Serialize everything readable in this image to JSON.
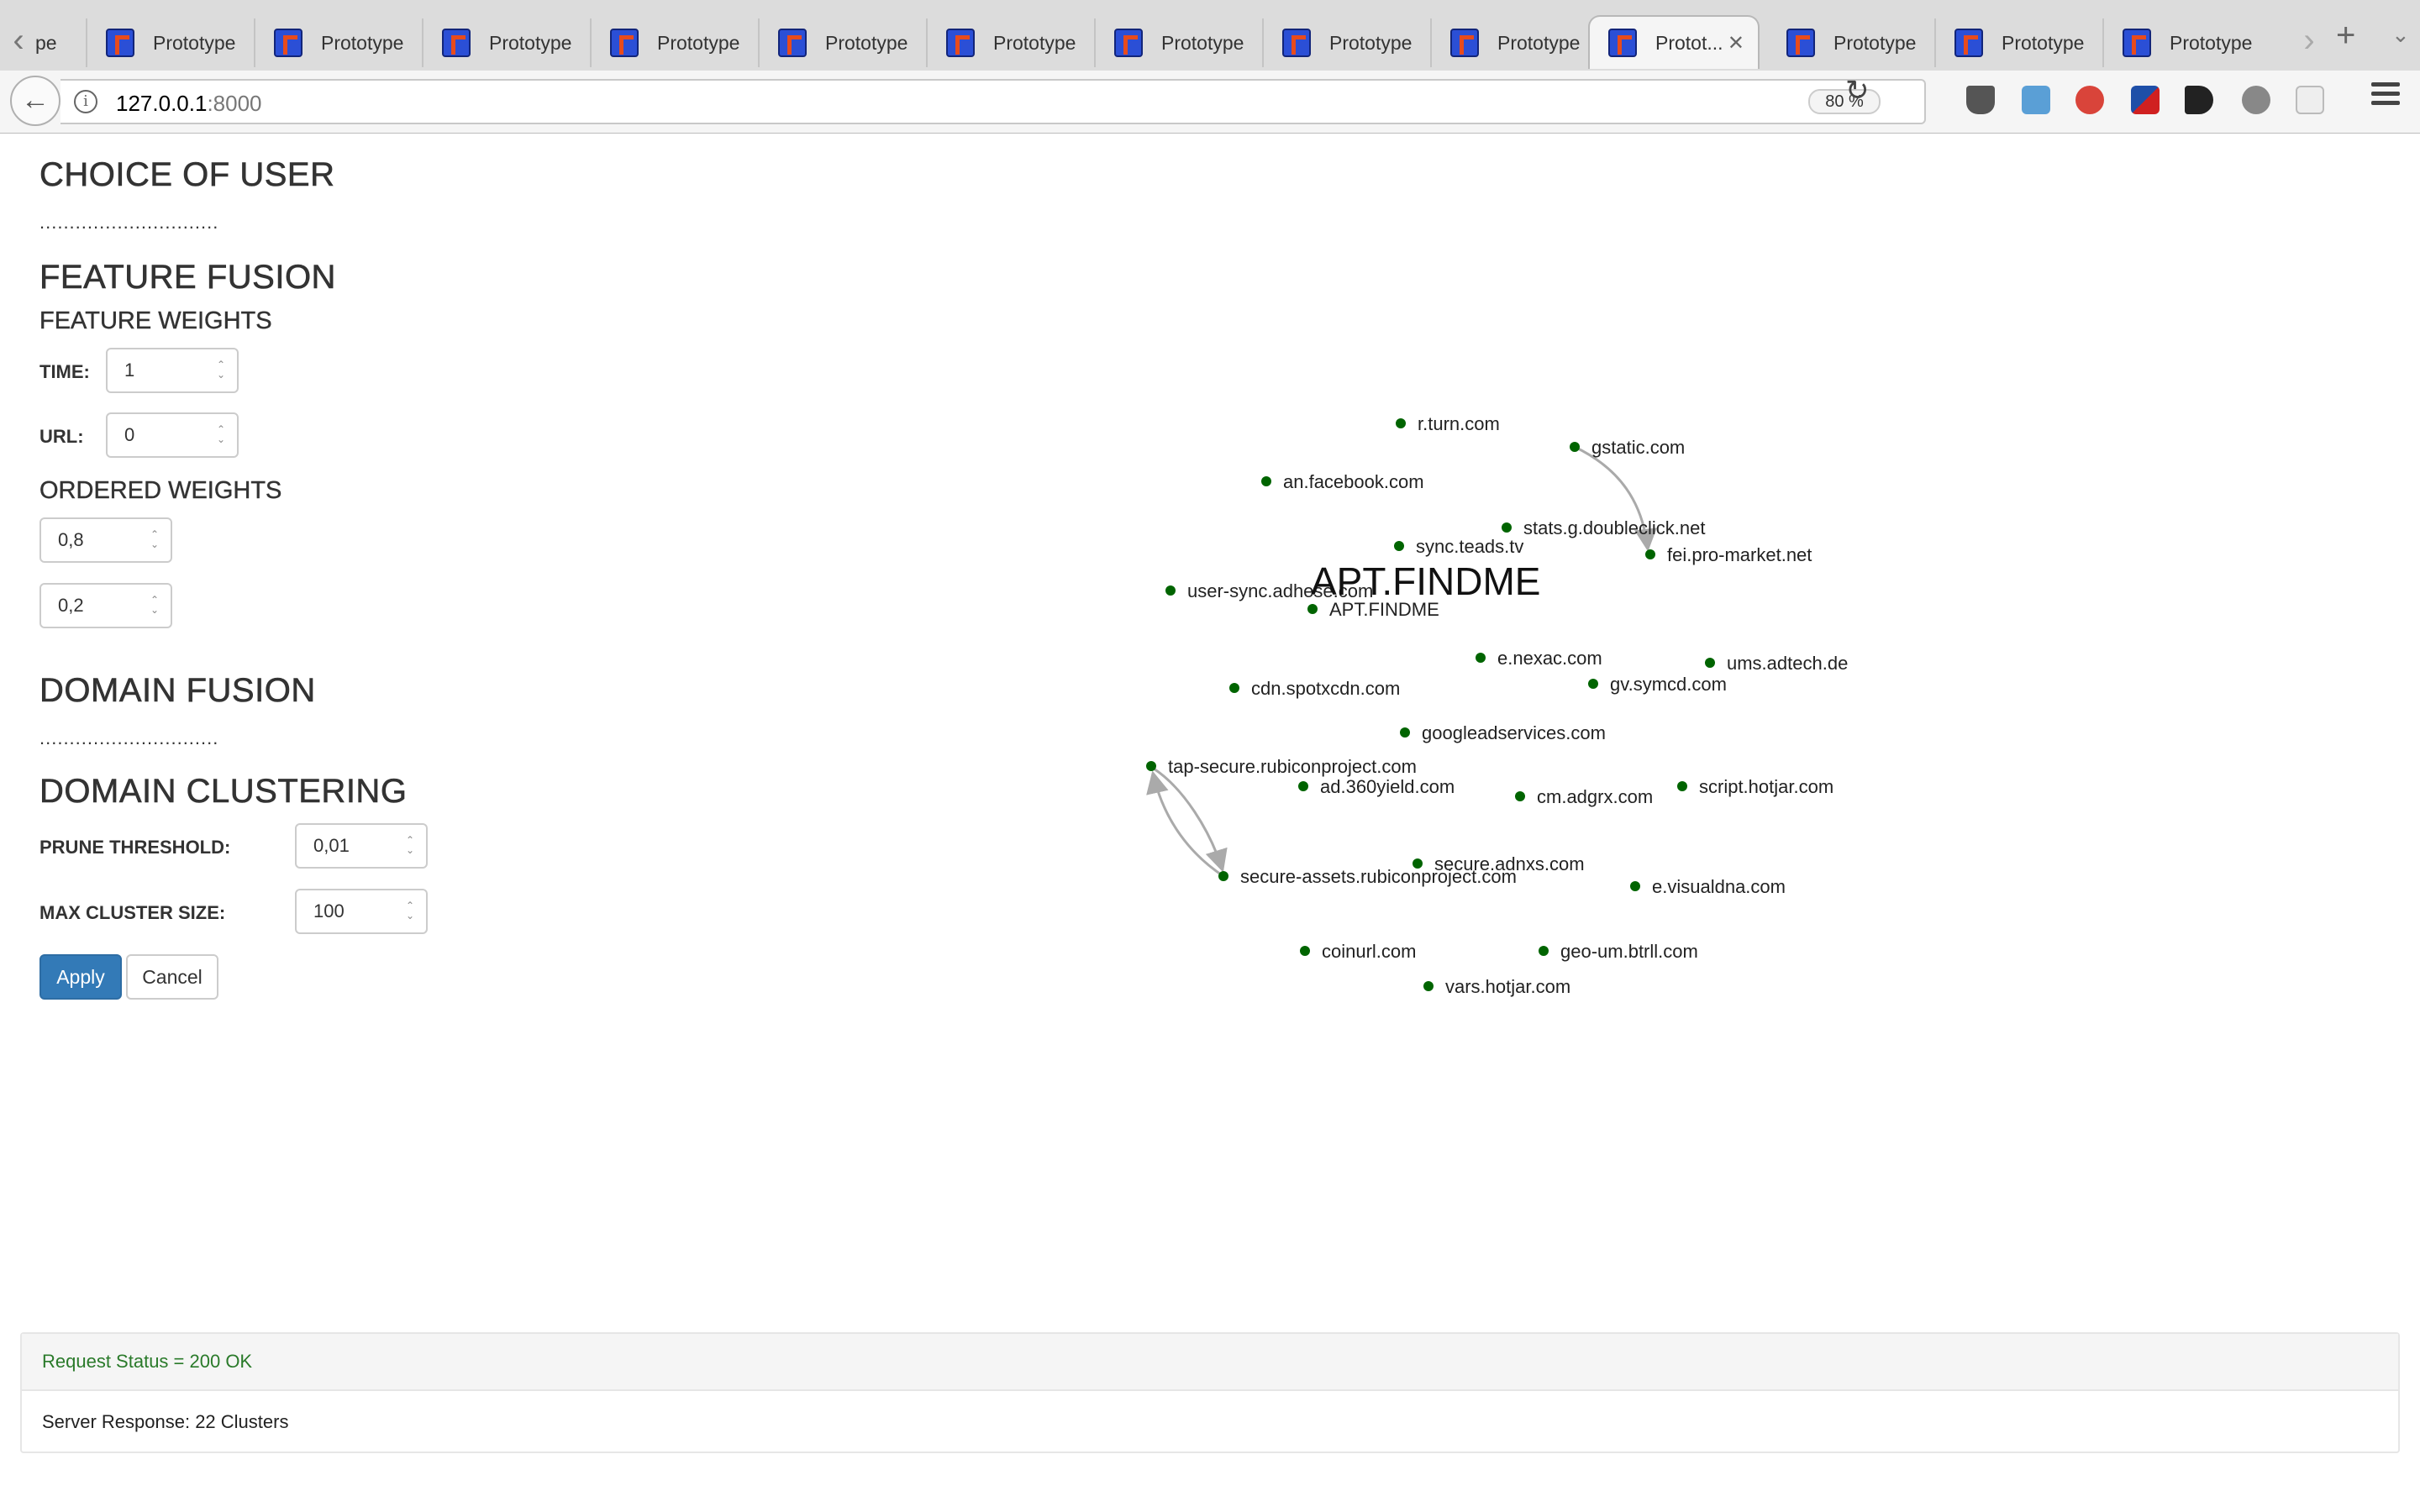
{
  "browser": {
    "tabs": [
      {
        "label": "Prototype",
        "active": false
      },
      {
        "label": "Prototype",
        "active": false
      },
      {
        "label": "Prototype",
        "active": false
      },
      {
        "label": "Prototype",
        "active": false
      },
      {
        "label": "Prototype",
        "active": false
      },
      {
        "label": "Prototype",
        "active": false
      },
      {
        "label": "Prototype",
        "active": false
      },
      {
        "label": "Prototype",
        "active": false
      },
      {
        "label": "Prototype",
        "active": false
      },
      {
        "label": "Protot...",
        "active": true
      },
      {
        "label": "Prototype",
        "active": false
      },
      {
        "label": "Prototype",
        "active": false
      },
      {
        "label": "Prototype",
        "active": false
      }
    ],
    "first_tab_fragment": "pe",
    "url_host": "127.0.0.1",
    "url_port": ":8000",
    "zoom": "80 %",
    "icons": {
      "favicon": "prototype-favicon",
      "close": "close-icon",
      "back": "back-arrow-icon",
      "reload": "reload-icon",
      "menu": "hamburger-menu-icon"
    }
  },
  "sidebar": {
    "choice_of_user": "CHOICE OF USER",
    "choice_dots": "..............................",
    "feature_fusion": "FEATURE FUSION",
    "feature_weights": "FEATURE WEIGHTS",
    "time_label": "TIME:",
    "time_value": "1",
    "url_label": "URL:",
    "url_value": "0",
    "ordered_weights": "ORDERED WEIGHTS",
    "ordered_weight_1": "0,8",
    "ordered_weight_2": "0,2",
    "domain_fusion": "DOMAIN FUSION",
    "domain_dots": "..............................",
    "domain_clustering": "DOMAIN CLUSTERING",
    "prune_label": "PRUNE THRESHOLD:",
    "prune_value": "0,01",
    "max_cluster_label": "MAX CLUSTER SIZE:",
    "max_cluster_value": "100",
    "apply": "Apply",
    "cancel": "Cancel"
  },
  "graph": {
    "center_label": "APT.FINDME",
    "node_color": "#006400",
    "edge_color": "#aaaaaa",
    "nodes": [
      {
        "label": "r.turn.com"
      },
      {
        "label": "gstatic.com"
      },
      {
        "label": "an.facebook.com"
      },
      {
        "label": "stats.g.doubleclick.net"
      },
      {
        "label": "sync.teads.tv"
      },
      {
        "label": "fei.pro-market.net"
      },
      {
        "label": "user-sync.adhese.com"
      },
      {
        "label": "APT.FINDME"
      },
      {
        "label": "e.nexac.com"
      },
      {
        "label": "ums.adtech.de"
      },
      {
        "label": "cdn.spotxcdn.com"
      },
      {
        "label": "gv.symcd.com"
      },
      {
        "label": "googleadservices.com"
      },
      {
        "label": "tap-secure.rubiconproject.com"
      },
      {
        "label": "ad.360yield.com"
      },
      {
        "label": "cm.adgrx.com"
      },
      {
        "label": "script.hotjar.com"
      },
      {
        "label": "secure.adnxs.com"
      },
      {
        "label": "secure-assets.rubiconproject.com"
      },
      {
        "label": "e.visualdna.com"
      },
      {
        "label": "coinurl.com"
      },
      {
        "label": "geo-um.btrll.com"
      },
      {
        "label": "vars.hotjar.com"
      }
    ]
  },
  "footer": {
    "status": "Request Status = 200 OK",
    "response": "Server Response: 22 Clusters"
  }
}
